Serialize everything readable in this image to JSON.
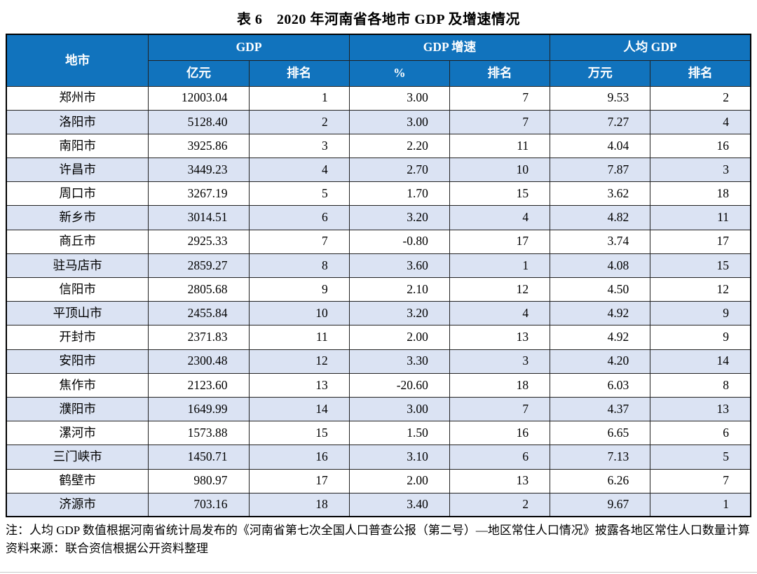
{
  "title": "表 6　2020 年河南省各地市 GDP 及增速情况",
  "colors": {
    "header_bg": "#1173bd",
    "stripe_bg": "#dbe3f3",
    "border": "#000000"
  },
  "table": {
    "header": {
      "city": "地市",
      "groups": [
        {
          "label": "GDP",
          "sub": [
            "亿元",
            "排名"
          ]
        },
        {
          "label": "GDP 增速",
          "sub": [
            "%",
            "排名"
          ]
        },
        {
          "label": "人均 GDP",
          "sub": [
            "万元",
            "排名"
          ]
        }
      ]
    },
    "rows": [
      [
        "郑州市",
        "12003.04",
        "1",
        "3.00",
        "7",
        "9.53",
        "2"
      ],
      [
        "洛阳市",
        "5128.40",
        "2",
        "3.00",
        "7",
        "7.27",
        "4"
      ],
      [
        "南阳市",
        "3925.86",
        "3",
        "2.20",
        "11",
        "4.04",
        "16"
      ],
      [
        "许昌市",
        "3449.23",
        "4",
        "2.70",
        "10",
        "7.87",
        "3"
      ],
      [
        "周口市",
        "3267.19",
        "5",
        "1.70",
        "15",
        "3.62",
        "18"
      ],
      [
        "新乡市",
        "3014.51",
        "6",
        "3.20",
        "4",
        "4.82",
        "11"
      ],
      [
        "商丘市",
        "2925.33",
        "7",
        "-0.80",
        "17",
        "3.74",
        "17"
      ],
      [
        "驻马店市",
        "2859.27",
        "8",
        "3.60",
        "1",
        "4.08",
        "15"
      ],
      [
        "信阳市",
        "2805.68",
        "9",
        "2.10",
        "12",
        "4.50",
        "12"
      ],
      [
        "平顶山市",
        "2455.84",
        "10",
        "3.20",
        "4",
        "4.92",
        "9"
      ],
      [
        "开封市",
        "2371.83",
        "11",
        "2.00",
        "13",
        "4.92",
        "9"
      ],
      [
        "安阳市",
        "2300.48",
        "12",
        "3.30",
        "3",
        "4.20",
        "14"
      ],
      [
        "焦作市",
        "2123.60",
        "13",
        "-20.60",
        "18",
        "6.03",
        "8"
      ],
      [
        "濮阳市",
        "1649.99",
        "14",
        "3.00",
        "7",
        "4.37",
        "13"
      ],
      [
        "漯河市",
        "1573.88",
        "15",
        "1.50",
        "16",
        "6.65",
        "6"
      ],
      [
        "三门峡市",
        "1450.71",
        "16",
        "3.10",
        "6",
        "7.13",
        "5"
      ],
      [
        "鹤壁市",
        "980.97",
        "17",
        "2.00",
        "13",
        "6.26",
        "7"
      ],
      [
        "济源市",
        "703.16",
        "18",
        "3.40",
        "2",
        "9.67",
        "1"
      ]
    ]
  },
  "notes": [
    "注：人均 GDP 数值根据河南省统计局发布的《河南省第七次全国人口普查公报（第二号）—地区常住人口情况》披露各地区常住人口数量计算",
    "资料来源：联合资信根据公开资料整理"
  ]
}
